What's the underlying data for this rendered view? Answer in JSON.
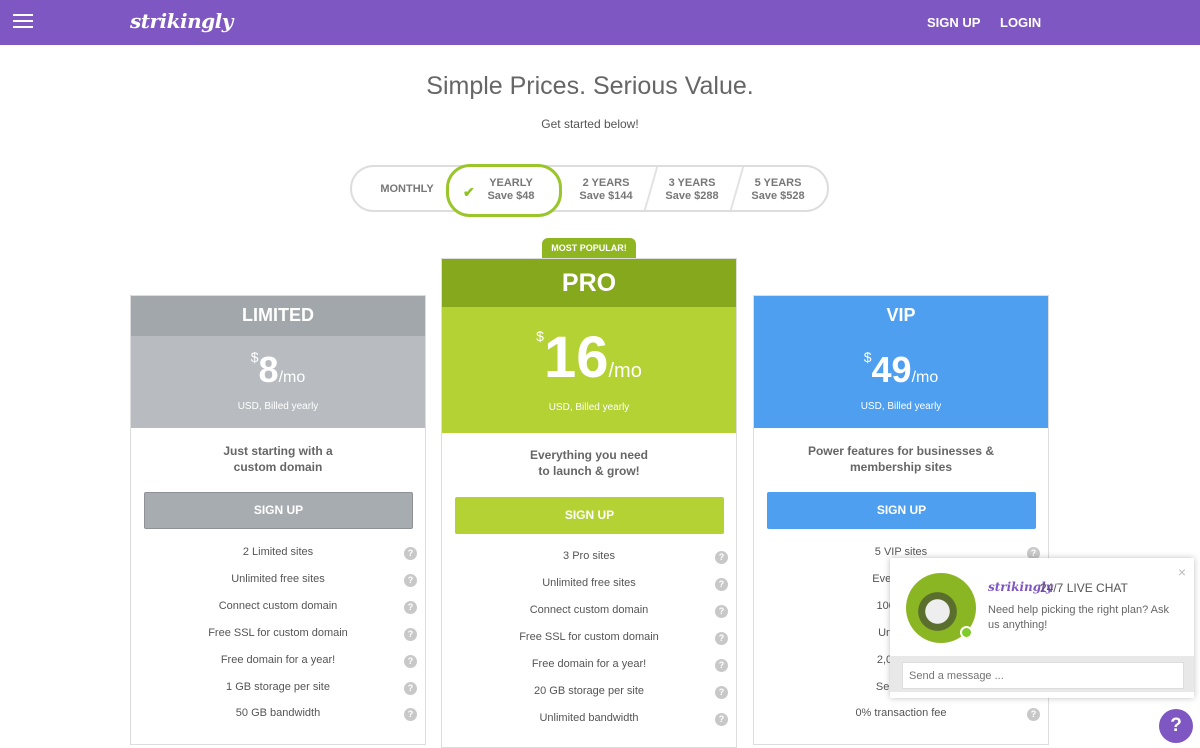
{
  "header": {
    "logo": "strikingly",
    "sign_up": "SIGN UP",
    "login": "LOGIN"
  },
  "hero": {
    "title": "Simple Prices. Serious Value.",
    "subtitle": "Get started below!"
  },
  "billing": {
    "selected": "YEARLY",
    "options": [
      {
        "label": "MONTHLY",
        "save": ""
      },
      {
        "label": "YEARLY",
        "save": "Save $48"
      },
      {
        "label": "2 YEARS",
        "save": "Save $144"
      },
      {
        "label": "3 YEARS",
        "save": "Save $288"
      },
      {
        "label": "5 YEARS",
        "save": "Save $528"
      }
    ]
  },
  "plans": [
    {
      "name": "LIMITED",
      "currency": "$",
      "amount": "8",
      "per": "/mo",
      "billed": "USD, Billed yearly",
      "desc1": "Just starting with a",
      "desc2": "custom domain",
      "cta": "SIGN UP",
      "colors": {
        "header": "#a2a7ab",
        "price_bg": "#b8bcc0",
        "cta": "#a7acb0"
      },
      "features": [
        "2 Limited sites",
        "Unlimited free sites",
        "Connect custom domain",
        "Free SSL for custom domain",
        "Free domain for a year!",
        "1 GB storage per site",
        "50 GB bandwidth"
      ]
    },
    {
      "name": "PRO",
      "badge": "MOST POPULAR!",
      "currency": "$",
      "amount": "16",
      "per": "/mo",
      "billed": "USD, Billed yearly",
      "desc1": "Everything you need",
      "desc2": "to launch & grow!",
      "cta": "SIGN UP",
      "colors": {
        "header": "#86a81d",
        "price_bg": "#b4d234",
        "cta": "#b4d234"
      },
      "features": [
        "3 Pro sites",
        "Unlimited free sites",
        "Connect custom domain",
        "Free SSL for custom domain",
        "Free domain for a year!",
        "20 GB storage per site",
        "Unlimited bandwidth"
      ]
    },
    {
      "name": "VIP",
      "currency": "$",
      "amount": "49",
      "per": "/mo",
      "billed": "USD, Billed yearly",
      "desc1": "Power features for businesses &",
      "desc2": "membership sites",
      "cta": "SIGN UP",
      "colors": {
        "header": "#4e9ff0",
        "price_bg": "#4e9ff0",
        "cta": "#4e9ff0"
      },
      "features": [
        "5 VIP sites",
        "Everything i",
        "100 GB st",
        "Unlimited",
        "2,000 Acti",
        "Sell unlimi",
        "0% transaction fee"
      ]
    }
  ],
  "chat": {
    "brand": "strikingly",
    "title": "24/7 LIVE CHAT",
    "message": "Need help picking the right plan? Ask us anything!",
    "placeholder": "Send a message ...",
    "close": "×"
  },
  "help_button": "?",
  "icons": {
    "menu": "hamburger-icon",
    "check": "check-icon",
    "help": "question-icon",
    "close": "close-icon"
  },
  "colors": {
    "brand": "#7e57c2",
    "accent_green": "#8fc31f"
  }
}
